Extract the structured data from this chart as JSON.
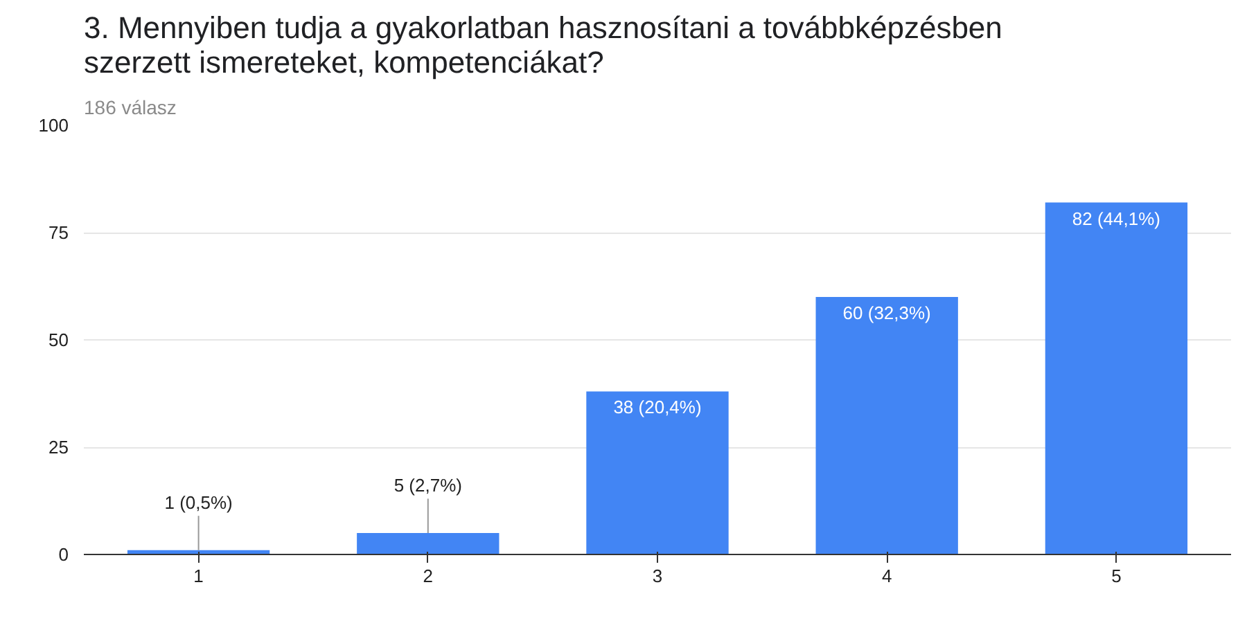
{
  "chart_data": {
    "type": "bar",
    "title": "3. Mennyiben tudja a gyakorlatban hasznosítani a továbbképzésben szerzett ismereteket, kompetenciákat?",
    "subtitle": "186 válasz",
    "categories": [
      "1",
      "2",
      "3",
      "4",
      "5"
    ],
    "values": [
      1,
      5,
      38,
      60,
      82
    ],
    "value_labels": [
      "1 (0,5%)",
      "5 (2,7%)",
      "38 (20,4%)",
      "60 (32,3%)",
      "82 (44,1%)"
    ],
    "color": "#4285f4",
    "ylim": [
      0,
      100
    ],
    "yticks": [
      0,
      25,
      50,
      75,
      100
    ],
    "grid": "y"
  }
}
